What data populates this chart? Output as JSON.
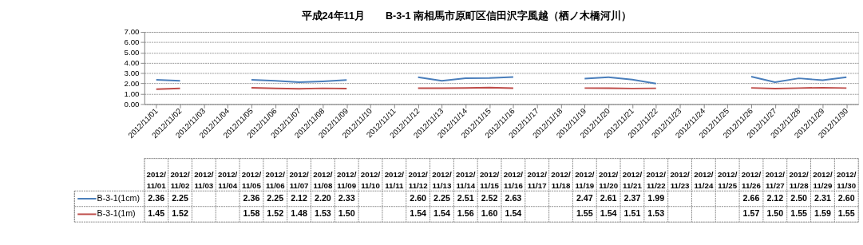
{
  "chart_data": {
    "type": "line",
    "title": "平成24年11月　　B-3-1 南相馬市原町区信田沢字風越（栖ノ木橋河川）",
    "categories": [
      "2012/11/01",
      "2012/11/02",
      "2012/11/03",
      "2012/11/04",
      "2012/11/05",
      "2012/11/06",
      "2012/11/07",
      "2012/11/08",
      "2012/11/09",
      "2012/11/10",
      "2012/11/11",
      "2012/11/12",
      "2012/11/13",
      "2012/11/14",
      "2012/11/15",
      "2012/11/16",
      "2012/11/17",
      "2012/11/18",
      "2012/11/19",
      "2012/11/20",
      "2012/11/21",
      "2012/11/22",
      "2012/11/23",
      "2012/11/24",
      "2012/11/25",
      "2012/11/26",
      "2012/11/27",
      "2012/11/28",
      "2012/11/29",
      "2012/11/30"
    ],
    "series": [
      {
        "name": "B-3-1(1cm)",
        "color": "#4a7ebb",
        "values": [
          2.36,
          2.25,
          null,
          null,
          2.36,
          2.25,
          2.12,
          2.2,
          2.33,
          null,
          null,
          2.6,
          2.25,
          2.51,
          2.52,
          2.63,
          null,
          null,
          2.47,
          2.61,
          2.37,
          1.99,
          null,
          null,
          null,
          2.66,
          2.12,
          2.5,
          2.31,
          2.6
        ],
        "value_labels": [
          "2.36",
          "2.25",
          null,
          null,
          "2.36",
          "2.25",
          "2.12",
          "2.20",
          "2.33",
          null,
          null,
          "2.60",
          "2.25",
          "2.51",
          "2.52",
          "2.63",
          null,
          null,
          "2.47",
          "2.61",
          "2.37",
          "1.99",
          null,
          null,
          null,
          "2.66",
          "2.12",
          "2.50",
          "2.31",
          "2.60"
        ]
      },
      {
        "name": "B-3-1(1m)",
        "color": "#be4b48",
        "values": [
          1.45,
          1.52,
          null,
          null,
          1.58,
          1.52,
          1.48,
          1.53,
          1.5,
          null,
          null,
          1.54,
          1.54,
          1.56,
          1.6,
          1.54,
          null,
          null,
          1.55,
          1.54,
          1.51,
          1.53,
          null,
          null,
          null,
          1.57,
          1.5,
          1.55,
          1.59,
          1.55
        ],
        "value_labels": [
          "1.45",
          "1.52",
          null,
          null,
          "1.58",
          "1.52",
          "1.48",
          "1.53",
          "1.50",
          null,
          null,
          "1.54",
          "1.54",
          "1.56",
          "1.60",
          "1.54",
          null,
          null,
          "1.55",
          "1.54",
          "1.51",
          "1.53",
          null,
          null,
          null,
          "1.57",
          "1.50",
          "1.55",
          "1.59",
          "1.55"
        ]
      }
    ],
    "ylim": [
      0,
      7
    ],
    "yticks": [
      {
        "value": 0,
        "label": "0.00"
      },
      {
        "value": 1,
        "label": "1.00"
      },
      {
        "value": 2,
        "label": "2.00"
      },
      {
        "value": 3,
        "label": "3.00"
      },
      {
        "value": 4,
        "label": "4.00"
      },
      {
        "value": 5,
        "label": "5.00"
      },
      {
        "value": 6,
        "label": "6.00"
      },
      {
        "value": 7,
        "label": "7.00"
      }
    ],
    "grid": "y",
    "legend": "bottom left",
    "marker": "none",
    "line_style": "solid"
  }
}
